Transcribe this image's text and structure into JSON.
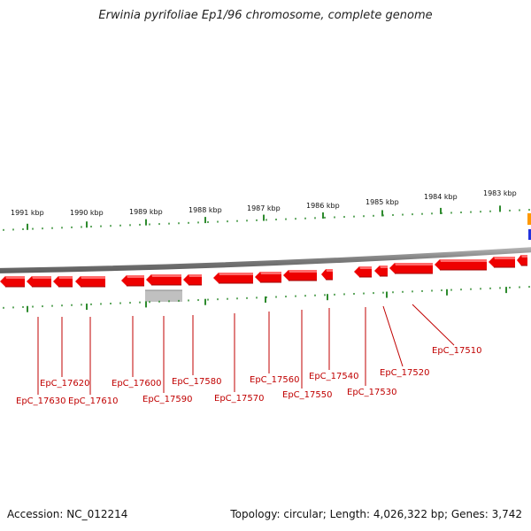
{
  "title": "Erwinia pyrifoliae Ep1/96 chromosome, complete genome",
  "footer": {
    "accession": "Accession: NC_012214",
    "summary": "Topology: circular; Length: 4,026,322 bp; Genes: 3,742"
  },
  "colors": {
    "backbone": "#808080",
    "gene_fill": "#ee0000",
    "gene_top": "#ff6a6a",
    "gene_dark": "#a00000",
    "tick": "#2e8b2e",
    "label": "#c00000",
    "highlight": "#c0c0c0",
    "edge_orange": "#ff9900",
    "edge_blue": "#2233dd"
  },
  "kbp_labels": [
    "1991 kbp",
    "1990 kbp",
    "1989 kbp",
    "1988 kbp",
    "1987 kbp",
    "1986 kbp",
    "1985 kbp",
    "1984 kbp",
    "1983 kbp"
  ],
  "genes": [
    {
      "id": "EpC_17630"
    },
    {
      "id": "EpC_17620"
    },
    {
      "id": "EpC_17610"
    },
    {
      "id": "EpC_17600"
    },
    {
      "id": "EpC_17590"
    },
    {
      "id": "EpC_17580"
    },
    {
      "id": "EpC_17570"
    },
    {
      "id": "EpC_17560"
    },
    {
      "id": "EpC_17550"
    },
    {
      "id": "EpC_17540"
    },
    {
      "id": "EpC_17530"
    },
    {
      "id": "EpC_17520"
    },
    {
      "id": "EpC_17510"
    }
  ]
}
